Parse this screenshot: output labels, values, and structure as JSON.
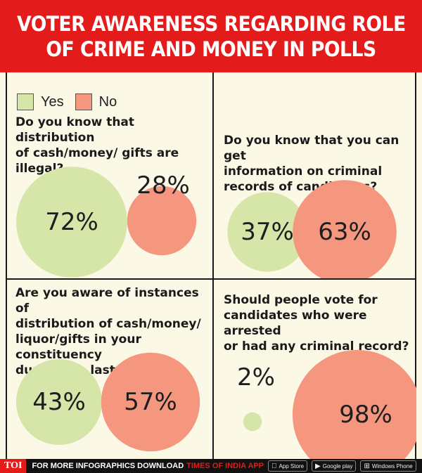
{
  "header": {
    "line1": "VOTER AWARENESS REGARDING ROLE",
    "line2": "OF CRIME AND MONEY IN POLLS"
  },
  "legend": {
    "yes": "Yes",
    "no": "No"
  },
  "colors": {
    "yes": "#d6e5a8",
    "no": "#f5967e",
    "header": "#e41b1b",
    "background": "#fbf8e6"
  },
  "questions": [
    "Do you know that distribution\nof cash/money/ gifts are\nillegal?",
    "Do you know that you can get\ninformation on criminal\nrecords of candidates?",
    "Are you aware of instances of\ndistribution of cash/money/\nliquor/gifts in your constituency\nduring the last election?",
    "Should people vote for\ncandidates who were arrested\nor had any criminal record?"
  ],
  "chart_data": [
    {
      "type": "bubble",
      "question_index": 0,
      "categories": [
        "Yes",
        "No"
      ],
      "values": [
        72,
        28
      ],
      "labels": [
        "72%",
        "28%"
      ]
    },
    {
      "type": "bubble",
      "question_index": 1,
      "categories": [
        "Yes",
        "No"
      ],
      "values": [
        37,
        63
      ],
      "labels": [
        "37%",
        "63%"
      ]
    },
    {
      "type": "bubble",
      "question_index": 2,
      "categories": [
        "Yes",
        "No"
      ],
      "values": [
        43,
        57
      ],
      "labels": [
        "43%",
        "57%"
      ]
    },
    {
      "type": "bubble",
      "question_index": 3,
      "categories": [
        "Yes",
        "No"
      ],
      "values": [
        2,
        98
      ],
      "labels": [
        "2%",
        "98%"
      ]
    }
  ],
  "footer": {
    "brand": "TOI",
    "text": "FOR MORE  INFOGRAPHICS DOWNLOAD",
    "highlight": "TIMES OF INDIA  APP",
    "stores": [
      "App Store",
      "Google play",
      "Windows Phone"
    ]
  }
}
